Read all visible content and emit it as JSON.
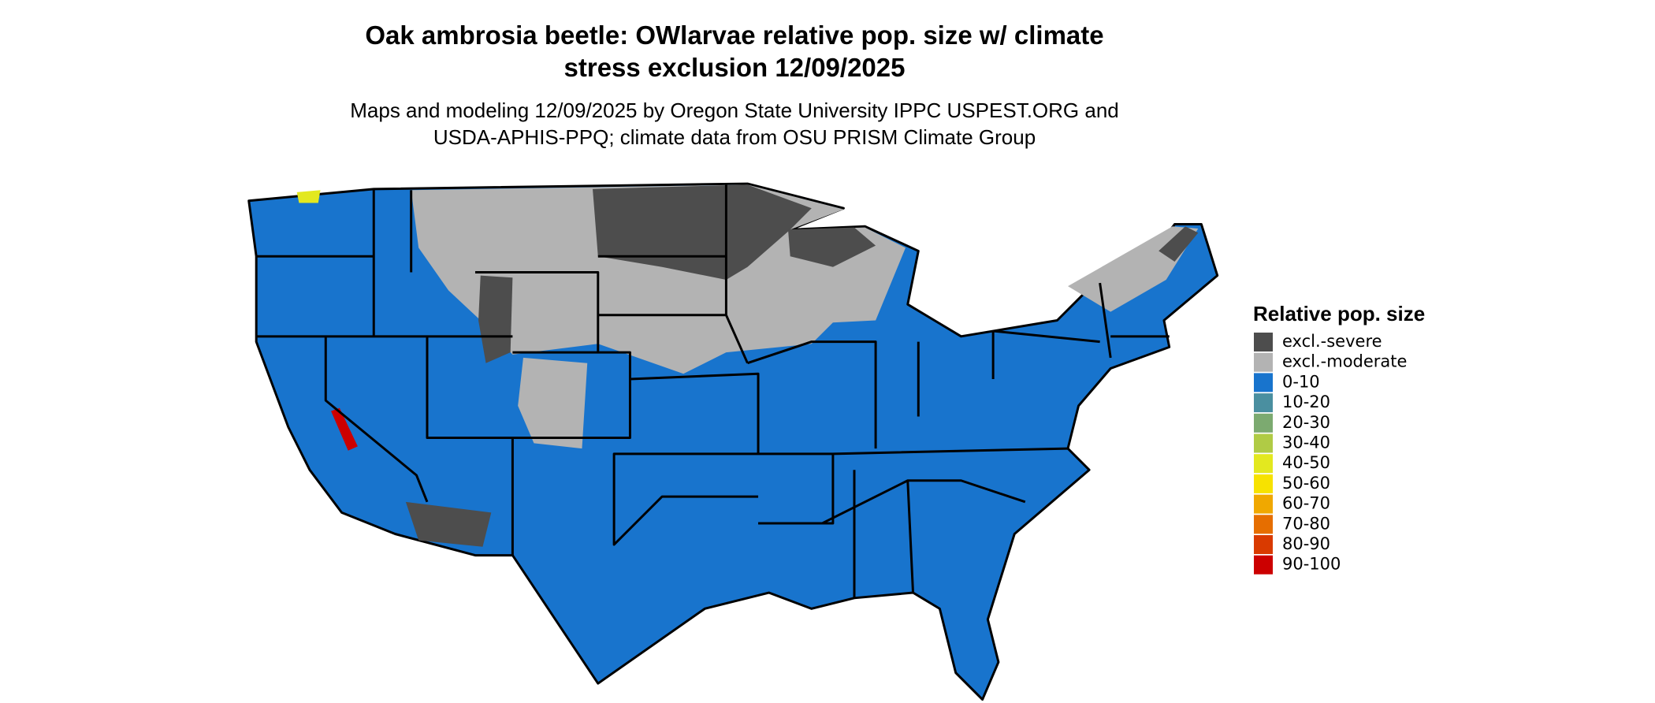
{
  "header": {
    "title_lines": [
      "Oak ambrosia beetle: OWlarvae relative pop. size w/ climate",
      "stress exclusion 12/09/2025"
    ],
    "subtitle_lines": [
      "Maps and modeling 12/09/2025 by Oregon State University IPPC USPEST.ORG and",
      "USDA-APHIS-PPQ; climate data from OSU PRISM Climate Group"
    ]
  },
  "legend": {
    "title": "Relative pop. size",
    "items": [
      {
        "label": "excl.-severe",
        "color": "#4d4d4d"
      },
      {
        "label": "excl.-moderate",
        "color": "#b3b3b3"
      },
      {
        "label": "0-10",
        "color": "#1874cd"
      },
      {
        "label": "10-20",
        "color": "#4a8fa0"
      },
      {
        "label": "20-30",
        "color": "#7caa70"
      },
      {
        "label": "30-40",
        "color": "#b0cb45"
      },
      {
        "label": "40-50",
        "color": "#e3e81f"
      },
      {
        "label": "50-60",
        "color": "#f7e200"
      },
      {
        "label": "60-70",
        "color": "#f0a800"
      },
      {
        "label": "70-80",
        "color": "#e66e00"
      },
      {
        "label": "80-90",
        "color": "#d93a00"
      },
      {
        "label": "90-100",
        "color": "#cc0000"
      }
    ]
  }
}
